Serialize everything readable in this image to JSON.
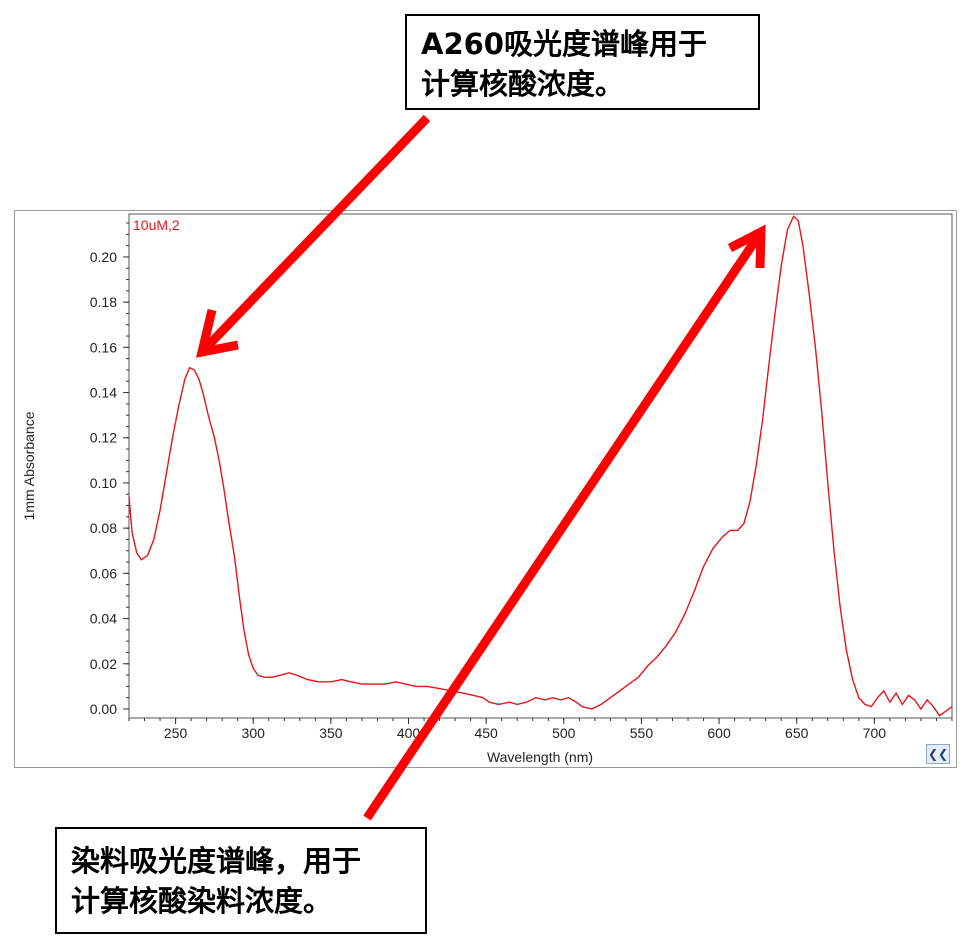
{
  "annotations": {
    "top": {
      "line1": "A260吸光度谱峰用于",
      "line2": "计算核酸浓度。"
    },
    "bottom": {
      "line1": "染料吸光度谱峰，用于",
      "line2": "计算核酸染料浓度。"
    },
    "arrow_color": "#ff0000"
  },
  "chart_data": {
    "type": "line",
    "title": "",
    "xlabel": "Wavelength (nm)",
    "ylabel": "1mm Absorbance",
    "xlim": [
      220,
      750
    ],
    "ylim": [
      -0.004,
      0.219
    ],
    "x_ticks": [
      250,
      300,
      350,
      400,
      450,
      500,
      550,
      600,
      650,
      700
    ],
    "y_ticks": [
      0.0,
      0.02,
      0.04,
      0.06,
      0.08,
      0.1,
      0.12,
      0.14,
      0.16,
      0.18,
      0.2
    ],
    "series": [
      {
        "name": "10uM,2",
        "color": "#e8141b",
        "points": [
          [
            220,
            0.094
          ],
          [
            222,
            0.078
          ],
          [
            225,
            0.069
          ],
          [
            228,
            0.066
          ],
          [
            232,
            0.068
          ],
          [
            236,
            0.075
          ],
          [
            240,
            0.088
          ],
          [
            244,
            0.104
          ],
          [
            248,
            0.12
          ],
          [
            252,
            0.134
          ],
          [
            256,
            0.146
          ],
          [
            259,
            0.151
          ],
          [
            262,
            0.15
          ],
          [
            265,
            0.146
          ],
          [
            268,
            0.139
          ],
          [
            271,
            0.13
          ],
          [
            275,
            0.12
          ],
          [
            278,
            0.11
          ],
          [
            281,
            0.098
          ],
          [
            284,
            0.084
          ],
          [
            288,
            0.067
          ],
          [
            291,
            0.05
          ],
          [
            294,
            0.035
          ],
          [
            297,
            0.024
          ],
          [
            300,
            0.018
          ],
          [
            303,
            0.015
          ],
          [
            307,
            0.014
          ],
          [
            312,
            0.014
          ],
          [
            318,
            0.015
          ],
          [
            323,
            0.016
          ],
          [
            328,
            0.015
          ],
          [
            335,
            0.013
          ],
          [
            342,
            0.012
          ],
          [
            350,
            0.012
          ],
          [
            357,
            0.013
          ],
          [
            363,
            0.012
          ],
          [
            370,
            0.011
          ],
          [
            378,
            0.011
          ],
          [
            385,
            0.011
          ],
          [
            392,
            0.012
          ],
          [
            398,
            0.011
          ],
          [
            405,
            0.01
          ],
          [
            412,
            0.01
          ],
          [
            420,
            0.009
          ],
          [
            428,
            0.008
          ],
          [
            435,
            0.007
          ],
          [
            442,
            0.006
          ],
          [
            448,
            0.005
          ],
          [
            452,
            0.003
          ],
          [
            458,
            0.002
          ],
          [
            465,
            0.003
          ],
          [
            470,
            0.002
          ],
          [
            476,
            0.003
          ],
          [
            482,
            0.005
          ],
          [
            488,
            0.004
          ],
          [
            493,
            0.005
          ],
          [
            498,
            0.004
          ],
          [
            503,
            0.005
          ],
          [
            508,
            0.003
          ],
          [
            512,
            0.001
          ],
          [
            518,
            0.0
          ],
          [
            524,
            0.002
          ],
          [
            530,
            0.005
          ],
          [
            536,
            0.008
          ],
          [
            542,
            0.011
          ],
          [
            548,
            0.014
          ],
          [
            554,
            0.019
          ],
          [
            560,
            0.023
          ],
          [
            566,
            0.028
          ],
          [
            572,
            0.034
          ],
          [
            578,
            0.042
          ],
          [
            584,
            0.052
          ],
          [
            590,
            0.063
          ],
          [
            596,
            0.071
          ],
          [
            602,
            0.076
          ],
          [
            607,
            0.079
          ],
          [
            612,
            0.079
          ],
          [
            616,
            0.082
          ],
          [
            620,
            0.092
          ],
          [
            624,
            0.108
          ],
          [
            628,
            0.128
          ],
          [
            632,
            0.152
          ],
          [
            636,
            0.175
          ],
          [
            640,
            0.196
          ],
          [
            644,
            0.212
          ],
          [
            648,
            0.218
          ],
          [
            651,
            0.216
          ],
          [
            654,
            0.205
          ],
          [
            658,
            0.184
          ],
          [
            662,
            0.16
          ],
          [
            666,
            0.132
          ],
          [
            670,
            0.1
          ],
          [
            674,
            0.07
          ],
          [
            678,
            0.045
          ],
          [
            682,
            0.026
          ],
          [
            686,
            0.013
          ],
          [
            690,
            0.005
          ],
          [
            694,
            0.002
          ],
          [
            698,
            0.001
          ],
          [
            702,
            0.005
          ],
          [
            706,
            0.008
          ],
          [
            710,
            0.003
          ],
          [
            714,
            0.007
          ],
          [
            718,
            0.002
          ],
          [
            722,
            0.006
          ],
          [
            726,
            0.004
          ],
          [
            730,
            0.0
          ],
          [
            734,
            0.004
          ],
          [
            738,
            0.001
          ],
          [
            742,
            -0.003
          ],
          [
            746,
            -0.001
          ],
          [
            750,
            0.001
          ]
        ]
      }
    ]
  },
  "controls": {
    "collapse_glyph": "❮❮"
  }
}
